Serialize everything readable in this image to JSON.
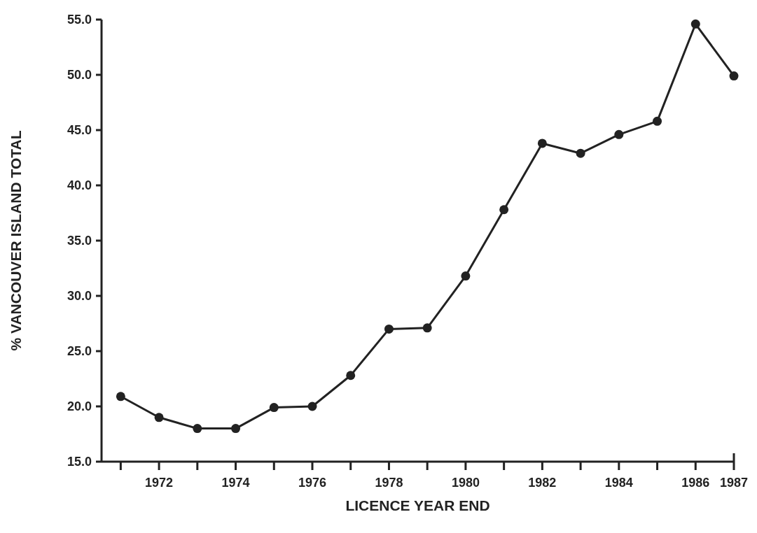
{
  "chart_data": {
    "type": "line",
    "xlabel": "LICENCE YEAR END",
    "ylabel": "% VANCOUVER ISLAND TOTAL",
    "x": [
      1971,
      1972,
      1973,
      1974,
      1975,
      1976,
      1977,
      1978,
      1979,
      1980,
      1981,
      1982,
      1983,
      1984,
      1985,
      1986,
      1987
    ],
    "series": [
      {
        "color": "#222222",
        "values": [
          20.9,
          19.0,
          18.0,
          18.0,
          19.9,
          20.0,
          22.8,
          27.0,
          27.1,
          31.8,
          37.8,
          43.8,
          42.9,
          44.6,
          45.8,
          54.6,
          49.9
        ]
      }
    ],
    "xlim": [
      1970.5,
      1987
    ],
    "xticks": [
      {
        "value": 1971,
        "label": null
      },
      {
        "value": 1972,
        "label": "1972"
      },
      {
        "value": 1973,
        "label": null
      },
      {
        "value": 1974,
        "label": "1974"
      },
      {
        "value": 1975,
        "label": null
      },
      {
        "value": 1976,
        "label": "1976"
      },
      {
        "value": 1977,
        "label": null
      },
      {
        "value": 1978,
        "label": "1978"
      },
      {
        "value": 1979,
        "label": null
      },
      {
        "value": 1980,
        "label": "1980"
      },
      {
        "value": 1981,
        "label": null
      },
      {
        "value": 1982,
        "label": "1982"
      },
      {
        "value": 1983,
        "label": null
      },
      {
        "value": 1984,
        "label": "1984"
      },
      {
        "value": 1985,
        "label": null
      },
      {
        "value": 1986,
        "label": "1986"
      },
      {
        "value": 1987,
        "label": "1987"
      }
    ],
    "ylim": [
      15,
      55
    ],
    "yticks": [
      {
        "value": 15,
        "label": "15.0"
      },
      {
        "value": 20,
        "label": "20.0"
      },
      {
        "value": 25,
        "label": "25.0"
      },
      {
        "value": 30,
        "label": "30.0"
      },
      {
        "value": 35,
        "label": "35.0"
      },
      {
        "value": 40,
        "label": "40.0"
      },
      {
        "value": 45,
        "label": "45.0"
      },
      {
        "value": 50,
        "label": "50.0"
      },
      {
        "value": 55,
        "label": "55.0"
      }
    ],
    "grid": false,
    "marker": "circle",
    "line_style": "solid"
  }
}
